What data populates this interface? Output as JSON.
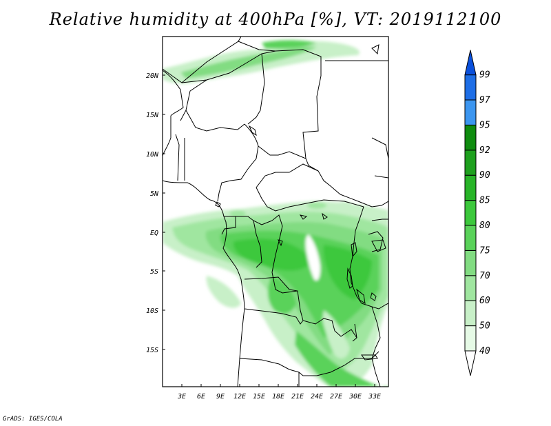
{
  "title": "Relative humidity at 400hPa [%], VT: 2019112100",
  "credit": "GrADS: IGES/COLA",
  "axes": {
    "lat_labels": [
      "20N",
      "15N",
      "10N",
      "5N",
      "EQ",
      "5S",
      "10S",
      "15S"
    ],
    "lon_labels": [
      "3E",
      "6E",
      "9E",
      "12E",
      "15E",
      "18E",
      "21E",
      "24E",
      "27E",
      "30E",
      "33E"
    ]
  },
  "colorbar": {
    "levels": [
      "40",
      "50",
      "60",
      "70",
      "75",
      "80",
      "85",
      "90",
      "92",
      "95",
      "97",
      "99"
    ],
    "colors": [
      "#ffffff",
      "#e6fae6",
      "#c8f0c8",
      "#a0e6a0",
      "#82dc82",
      "#5ad25a",
      "#3cc83c",
      "#28b428",
      "#1ea01e",
      "#0f8c0f",
      "#3c96f0",
      "#1e6ee6",
      "#0a50dc"
    ]
  }
}
